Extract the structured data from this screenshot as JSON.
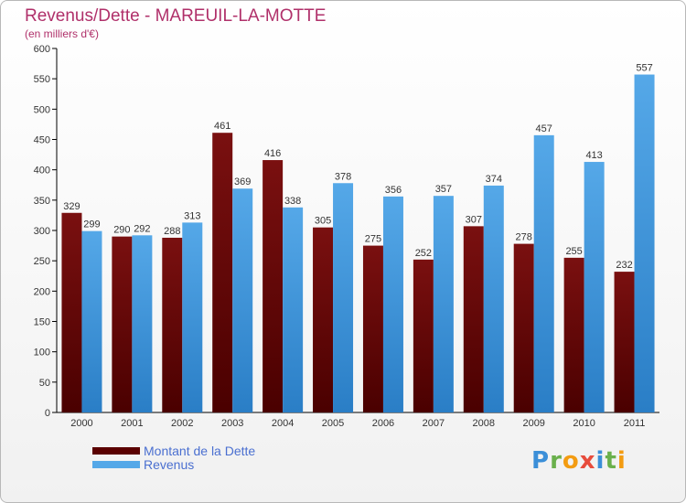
{
  "header": {
    "title": "Revenus/Dette - MAREUIL-LA-MOTTE",
    "subtitle": "(en milliers d'€)"
  },
  "colors": {
    "debt": "#7a1010",
    "debt_dark": "#4a0000",
    "revenue": "#55a8e8",
    "revenue_dark": "#2a7ec6",
    "title": "#b0306a"
  },
  "chart_data": {
    "type": "bar",
    "title": "Revenus/Dette - MAREUIL-LA-MOTTE",
    "ylabel": "(en milliers d'€)",
    "xlabel": "",
    "categories": [
      "2000",
      "2001",
      "2002",
      "2003",
      "2004",
      "2005",
      "2006",
      "2007",
      "2008",
      "2009",
      "2010",
      "2011"
    ],
    "series": [
      {
        "name": "Montant de la Dette",
        "values": [
          329,
          290,
          288,
          461,
          416,
          305,
          275,
          252,
          307,
          278,
          255,
          232
        ]
      },
      {
        "name": "Revenus",
        "values": [
          299,
          292,
          313,
          369,
          338,
          378,
          356,
          357,
          374,
          457,
          413,
          557
        ]
      }
    ],
    "ylim": [
      0,
      600
    ],
    "yticks": [
      0,
      50,
      100,
      150,
      200,
      250,
      300,
      350,
      400,
      450,
      500,
      550,
      600
    ],
    "grid": false,
    "legend_position": "bottom-left"
  },
  "legend": {
    "items": [
      {
        "label": "Montant de la Dette"
      },
      {
        "label": "Revenus"
      }
    ]
  },
  "logo": {
    "letters": [
      {
        "ch": "P",
        "color": "#3b8fd8"
      },
      {
        "ch": "r",
        "color": "#6ab04c"
      },
      {
        "ch": "o",
        "color": "#f39c12"
      },
      {
        "ch": "x",
        "color": "#e74c3c"
      },
      {
        "ch": "i",
        "color": "#3b8fd8"
      },
      {
        "ch": "t",
        "color": "#6ab04c"
      },
      {
        "ch": "i",
        "color": "#f39c12"
      }
    ]
  }
}
